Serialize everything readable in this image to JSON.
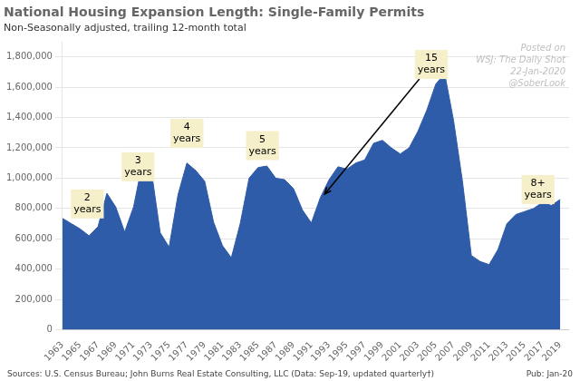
{
  "chart_data": {
    "type": "area",
    "title": "National Housing Expansion Length: Single-Family Permits",
    "subtitle": "Non-Seasonally adjusted, trailing 12-month total",
    "source": "Sources: U.S. Census Bureau; John Burns Real Estate Consulting, LLC (Data: Sep-19, updated quarterly†)",
    "pub": "Pub: Jan-20",
    "watermark": [
      "Posted on",
      "WSJ: The Daily Shot",
      "22-Jan-2020",
      "@SoberLook"
    ],
    "color": "#2e5ca8",
    "x": [
      1963,
      1964,
      1965,
      1966,
      1967,
      1968,
      1969,
      1970,
      1971,
      1972,
      1973,
      1974,
      1975,
      1976,
      1977,
      1978,
      1979,
      1980,
      1981,
      1982,
      1983,
      1984,
      1985,
      1986,
      1987,
      1988,
      1989,
      1990,
      1991,
      1992,
      1993,
      1994,
      1995,
      1996,
      1997,
      1998,
      1999,
      2000,
      2001,
      2002,
      2003,
      2004,
      2005,
      2006,
      2007,
      2008,
      2009,
      2010,
      2011,
      2012,
      2013,
      2014,
      2015,
      2016,
      2017,
      2018,
      2019
    ],
    "values": [
      735000,
      700000,
      665000,
      620000,
      680000,
      900000,
      810000,
      645000,
      810000,
      1100000,
      1050000,
      640000,
      545000,
      890000,
      1100000,
      1050000,
      980000,
      710000,
      555000,
      475000,
      700000,
      1000000,
      1070000,
      1080000,
      1000000,
      990000,
      930000,
      790000,
      705000,
      870000,
      990000,
      1075000,
      1060000,
      1100000,
      1120000,
      1230000,
      1250000,
      1200000,
      1160000,
      1200000,
      1310000,
      1450000,
      1620000,
      1690000,
      1380000,
      980000,
      490000,
      450000,
      430000,
      530000,
      700000,
      760000,
      780000,
      800000,
      840000,
      820000,
      860000
    ],
    "xlim": [
      1963,
      2020
    ],
    "xticks": [
      1963,
      1965,
      1967,
      1969,
      1971,
      1973,
      1975,
      1977,
      1979,
      1981,
      1983,
      1985,
      1987,
      1989,
      1991,
      1993,
      1995,
      1997,
      1999,
      2001,
      2003,
      2005,
      2007,
      2009,
      2011,
      2013,
      2015,
      2017,
      2019
    ],
    "ylim": [
      0,
      1900000
    ],
    "yticks": [
      0,
      {
        "value": 200000,
        "label": "200,000"
      },
      {
        "value": 400000,
        "label": "400,000"
      },
      {
        "value": 600000,
        "label": "600,000"
      },
      {
        "value": 800000,
        "label": "800,000"
      },
      {
        "value": 1000000,
        "label": "1,000,000"
      },
      {
        "value": 1200000,
        "label": "1,200,000"
      },
      {
        "value": 1400000,
        "label": "1,400,000"
      },
      {
        "value": 1600000,
        "label": "1,600,000"
      },
      {
        "value": 1800000,
        "label": "1,800,000"
      }
    ],
    "grid": "y",
    "annotations": [
      {
        "text": "2\nyears",
        "x": 1965.8,
        "y": 830000,
        "color": "#f5efca"
      },
      {
        "text": "3\nyears",
        "x": 1971.5,
        "y": 1075000,
        "color": "#f5efca"
      },
      {
        "text": "4\nyears",
        "x": 1977.0,
        "y": 1295000,
        "color": "#f5efca"
      },
      {
        "text": "5\nyears",
        "x": 1985.5,
        "y": 1215000,
        "color": "#f5efca"
      },
      {
        "text": "15\nyears",
        "x": 2004.5,
        "y": 1750000,
        "arrow_to": [
          1992.5,
          895000
        ],
        "color": "#f5efca"
      },
      {
        "text": "8+\nyears",
        "x": 2016.5,
        "y": 925000,
        "color": "#f5efca"
      }
    ]
  }
}
